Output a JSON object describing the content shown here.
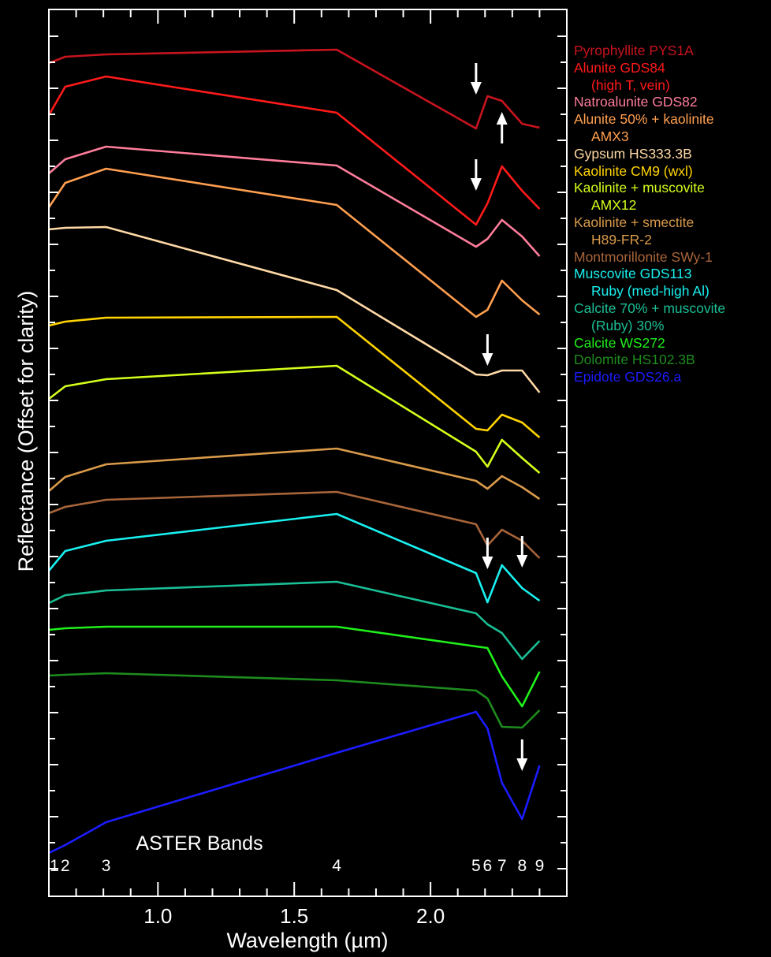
{
  "chart_data": {
    "type": "line",
    "title": "",
    "xlabel": "Wavelength (µm)",
    "ylabel": "Reflectance (Offset for clarity)",
    "xlim": [
      0.6,
      2.5
    ],
    "x_ticks": [
      "1.0",
      "1.5",
      "2.0"
    ],
    "x_tick_values": [
      1.0,
      1.5,
      2.0
    ],
    "grid": false,
    "legend_position": "right",
    "band_caption": "ASTER Bands",
    "bands": [
      {
        "label": "1",
        "x": 0.56
      },
      {
        "label": "2",
        "x": 0.66
      },
      {
        "label": "3",
        "x": 0.81
      },
      {
        "label": "4",
        "x": 1.656
      },
      {
        "label": "5",
        "x": 2.167
      },
      {
        "label": "6",
        "x": 2.209
      },
      {
        "label": "7",
        "x": 2.262
      },
      {
        "label": "8",
        "x": 2.336
      },
      {
        "label": "9",
        "x": 2.4
      }
    ],
    "x": [
      0.56,
      0.66,
      0.81,
      1.656,
      2.167,
      2.209,
      2.262,
      2.336,
      2.4
    ],
    "series": [
      {
        "name": "Pyrophyllite PYS1A",
        "label_lines": [
          "Pyrophyllite PYS1A"
        ],
        "color": "#c8141e",
        "values": [
          80,
          72,
          69,
          63,
          163,
          122,
          128,
          157,
          162
        ]
      },
      {
        "name": "Alunite GDS84 (high T, vein)",
        "label_lines": [
          "Alunite GDS84",
          "(high T, vein)"
        ],
        "color": "#ff1a1a",
        "values": [
          146,
          110,
          97,
          143,
          285,
          258,
          211,
          242,
          265
        ]
      },
      {
        "name": "Natroalunite GDS82",
        "label_lines": [
          "Natroalunite GDS82"
        ],
        "color": "#ff7d9b",
        "values": [
          220,
          202,
          186,
          210,
          313,
          303,
          279,
          300,
          325
        ]
      },
      {
        "name": "Alunite 50% + kaolinite AMX3",
        "label_lines": [
          "Alunite 50% + kaolinite",
          "AMX3"
        ],
        "color": "#ff9f4f",
        "values": [
          263,
          232,
          214,
          260,
          402,
          393,
          356,
          381,
          399
        ]
      },
      {
        "name": "Gypsum HS333.3B",
        "label_lines": [
          "Gypsum HS333.3B"
        ],
        "color": "#ffd9a6",
        "values": [
          291,
          289,
          288,
          368,
          475,
          476,
          470,
          470,
          498
        ]
      },
      {
        "name": "Kaolinite CM9 (wxl)",
        "label_lines": [
          "Kaolinite CM9 (wxl)"
        ],
        "color": "#ffd400",
        "values": [
          413,
          408,
          403,
          402,
          544,
          546,
          526,
          536,
          555
        ]
      },
      {
        "name": "Kaolinite + muscovite AMX12",
        "label_lines": [
          "Kaolinite + muscovite",
          "AMX12"
        ],
        "color": "#d4ff1a",
        "values": [
          506,
          490,
          481,
          464,
          573,
          592,
          558,
          581,
          600
        ]
      },
      {
        "name": "Kaolinite + smectite H89-FR-2",
        "label_lines": [
          "Kaolinite + smectite",
          "H89-FR-2"
        ],
        "color": "#d99a4a",
        "values": [
          623,
          605,
          589,
          569,
          610,
          620,
          604,
          618,
          633
        ]
      },
      {
        "name": "Montmorillonite SWy-1",
        "label_lines": [
          "Montmorillonite SWy-1"
        ],
        "color": "#a8653a",
        "values": [
          651,
          643,
          634,
          624,
          665,
          692,
          672,
          686,
          708
        ]
      },
      {
        "name": "Muscovite GDS113 Ruby (med-high Al)",
        "label_lines": [
          "Muscovite GDS113",
          "Ruby (med-high Al)"
        ],
        "color": "#19f0f0",
        "values": [
          724,
          699,
          686,
          652,
          727,
          764,
          717,
          746,
          762
        ]
      },
      {
        "name": "Calcite 70% + muscovite (Ruby) 30%",
        "label_lines": [
          "Calcite 70% + muscovite",
          "(Ruby) 30%"
        ],
        "color": "#1abf96",
        "values": [
          765,
          755,
          749,
          738,
          778,
          792,
          803,
          836,
          813
        ]
      },
      {
        "name": "Calcite WS272",
        "label_lines": [
          "Calcite WS272"
        ],
        "color": "#1ff01a",
        "values": [
          799,
          797,
          795,
          795,
          820,
          822,
          858,
          896,
          852
        ]
      },
      {
        "name": "Dolomite HS102.3B",
        "label_lines": [
          "Dolomite HS102.3B"
        ],
        "color": "#1e8c1e",
        "values": [
          857,
          856,
          854,
          863,
          876,
          886,
          922,
          923,
          901
        ]
      },
      {
        "name": "Epidote GDS26.a",
        "label_lines": [
          "Epidote GDS26.a"
        ],
        "color": "#1c1cff",
        "values": [
          1082,
          1072,
          1043,
          955,
          903,
          924,
          993,
          1039,
          971
        ]
      }
    ],
    "annotations": [
      {
        "type": "arrow-down",
        "x": 2.167,
        "y": 100
      },
      {
        "type": "arrow-up",
        "x": 2.262,
        "y": 162
      },
      {
        "type": "arrow-down",
        "x": 2.167,
        "y": 222
      },
      {
        "type": "arrow-down",
        "x": 2.209,
        "y": 444
      },
      {
        "type": "arrow-down",
        "x": 2.209,
        "y": 702
      },
      {
        "type": "arrow-down",
        "x": 2.336,
        "y": 700
      },
      {
        "type": "arrow-down",
        "x": 2.336,
        "y": 958
      }
    ]
  }
}
